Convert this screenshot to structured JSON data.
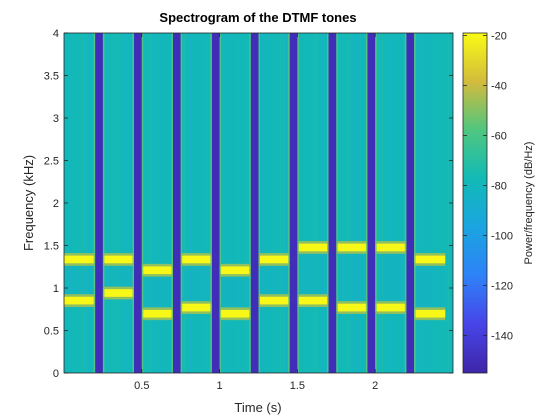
{
  "chart_data": {
    "type": "heatmap",
    "title": "Spectrogram of the DTMF tones",
    "xlabel": "Time (s)",
    "ylabel": "Frequency (kHz)",
    "xlim": [
      0,
      2.5
    ],
    "ylim": [
      0,
      4
    ],
    "xticks": [
      0.5,
      1,
      1.5,
      2
    ],
    "xtick_labels": [
      "0.5",
      "1",
      "1.5",
      "2"
    ],
    "yticks": [
      0,
      0.5,
      1,
      1.5,
      2,
      2.5,
      3,
      3.5,
      4
    ],
    "ytick_labels": [
      "0",
      "0.5",
      "1",
      "1.5",
      "2",
      "2.5",
      "3",
      "3.5",
      "4"
    ],
    "colorbar": {
      "label": "Power/frequency (dB/Hz)",
      "range": [
        -155,
        -19
      ],
      "ticks": [
        -20,
        -40,
        -60,
        -80,
        -100,
        -120,
        -140
      ],
      "tick_labels": [
        "-20",
        "-40",
        "-60",
        "-80",
        "-100",
        "-120",
        "-140"
      ],
      "colormap": "parula"
    },
    "background_level_db": -78,
    "silence_level_db": -150,
    "tone_peak_db": -20,
    "tones": [
      {
        "start": 0.0,
        "end": 0.2,
        "low_khz": 0.852,
        "high_khz": 1.336
      },
      {
        "start": 0.25,
        "end": 0.45,
        "low_khz": 0.941,
        "high_khz": 1.336
      },
      {
        "start": 0.5,
        "end": 0.7,
        "low_khz": 0.697,
        "high_khz": 1.209
      },
      {
        "start": 0.75,
        "end": 0.95,
        "low_khz": 0.77,
        "high_khz": 1.336
      },
      {
        "start": 1.0,
        "end": 1.2,
        "low_khz": 0.697,
        "high_khz": 1.209
      },
      {
        "start": 1.25,
        "end": 1.45,
        "low_khz": 0.852,
        "high_khz": 1.336
      },
      {
        "start": 1.5,
        "end": 1.7,
        "low_khz": 0.852,
        "high_khz": 1.477
      },
      {
        "start": 1.75,
        "end": 1.95,
        "low_khz": 0.77,
        "high_khz": 1.477
      },
      {
        "start": 2.0,
        "end": 2.2,
        "low_khz": 0.77,
        "high_khz": 1.477
      },
      {
        "start": 2.25,
        "end": 2.45,
        "low_khz": 0.697,
        "high_khz": 1.336
      }
    ],
    "silences": [
      {
        "start": 0.2,
        "end": 0.25
      },
      {
        "start": 0.45,
        "end": 0.5
      },
      {
        "start": 0.7,
        "end": 0.75
      },
      {
        "start": 0.95,
        "end": 1.0
      },
      {
        "start": 1.2,
        "end": 1.25
      },
      {
        "start": 1.45,
        "end": 1.5
      },
      {
        "start": 1.7,
        "end": 1.75
      },
      {
        "start": 1.95,
        "end": 2.0
      },
      {
        "start": 2.2,
        "end": 2.25
      }
    ],
    "grid": false
  }
}
